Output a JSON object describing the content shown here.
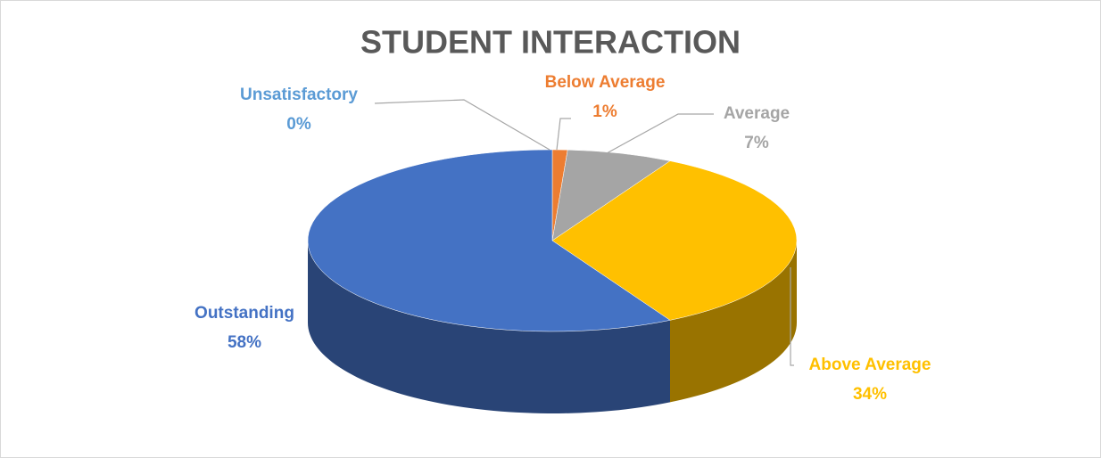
{
  "chart_data": {
    "type": "pie",
    "title": "STUDENT INTERACTION",
    "categories": [
      "Unsatisfactory",
      "Below Average",
      "Average",
      "Above Average",
      "Outstanding"
    ],
    "values": [
      0,
      1,
      7,
      34,
      58
    ],
    "value_labels": [
      "0%",
      "1%",
      "7%",
      "34%",
      "58%"
    ],
    "colors": [
      "#5b9bd5",
      "#ed7d31",
      "#a5a5a5",
      "#ffc000",
      "#4472c4"
    ]
  }
}
